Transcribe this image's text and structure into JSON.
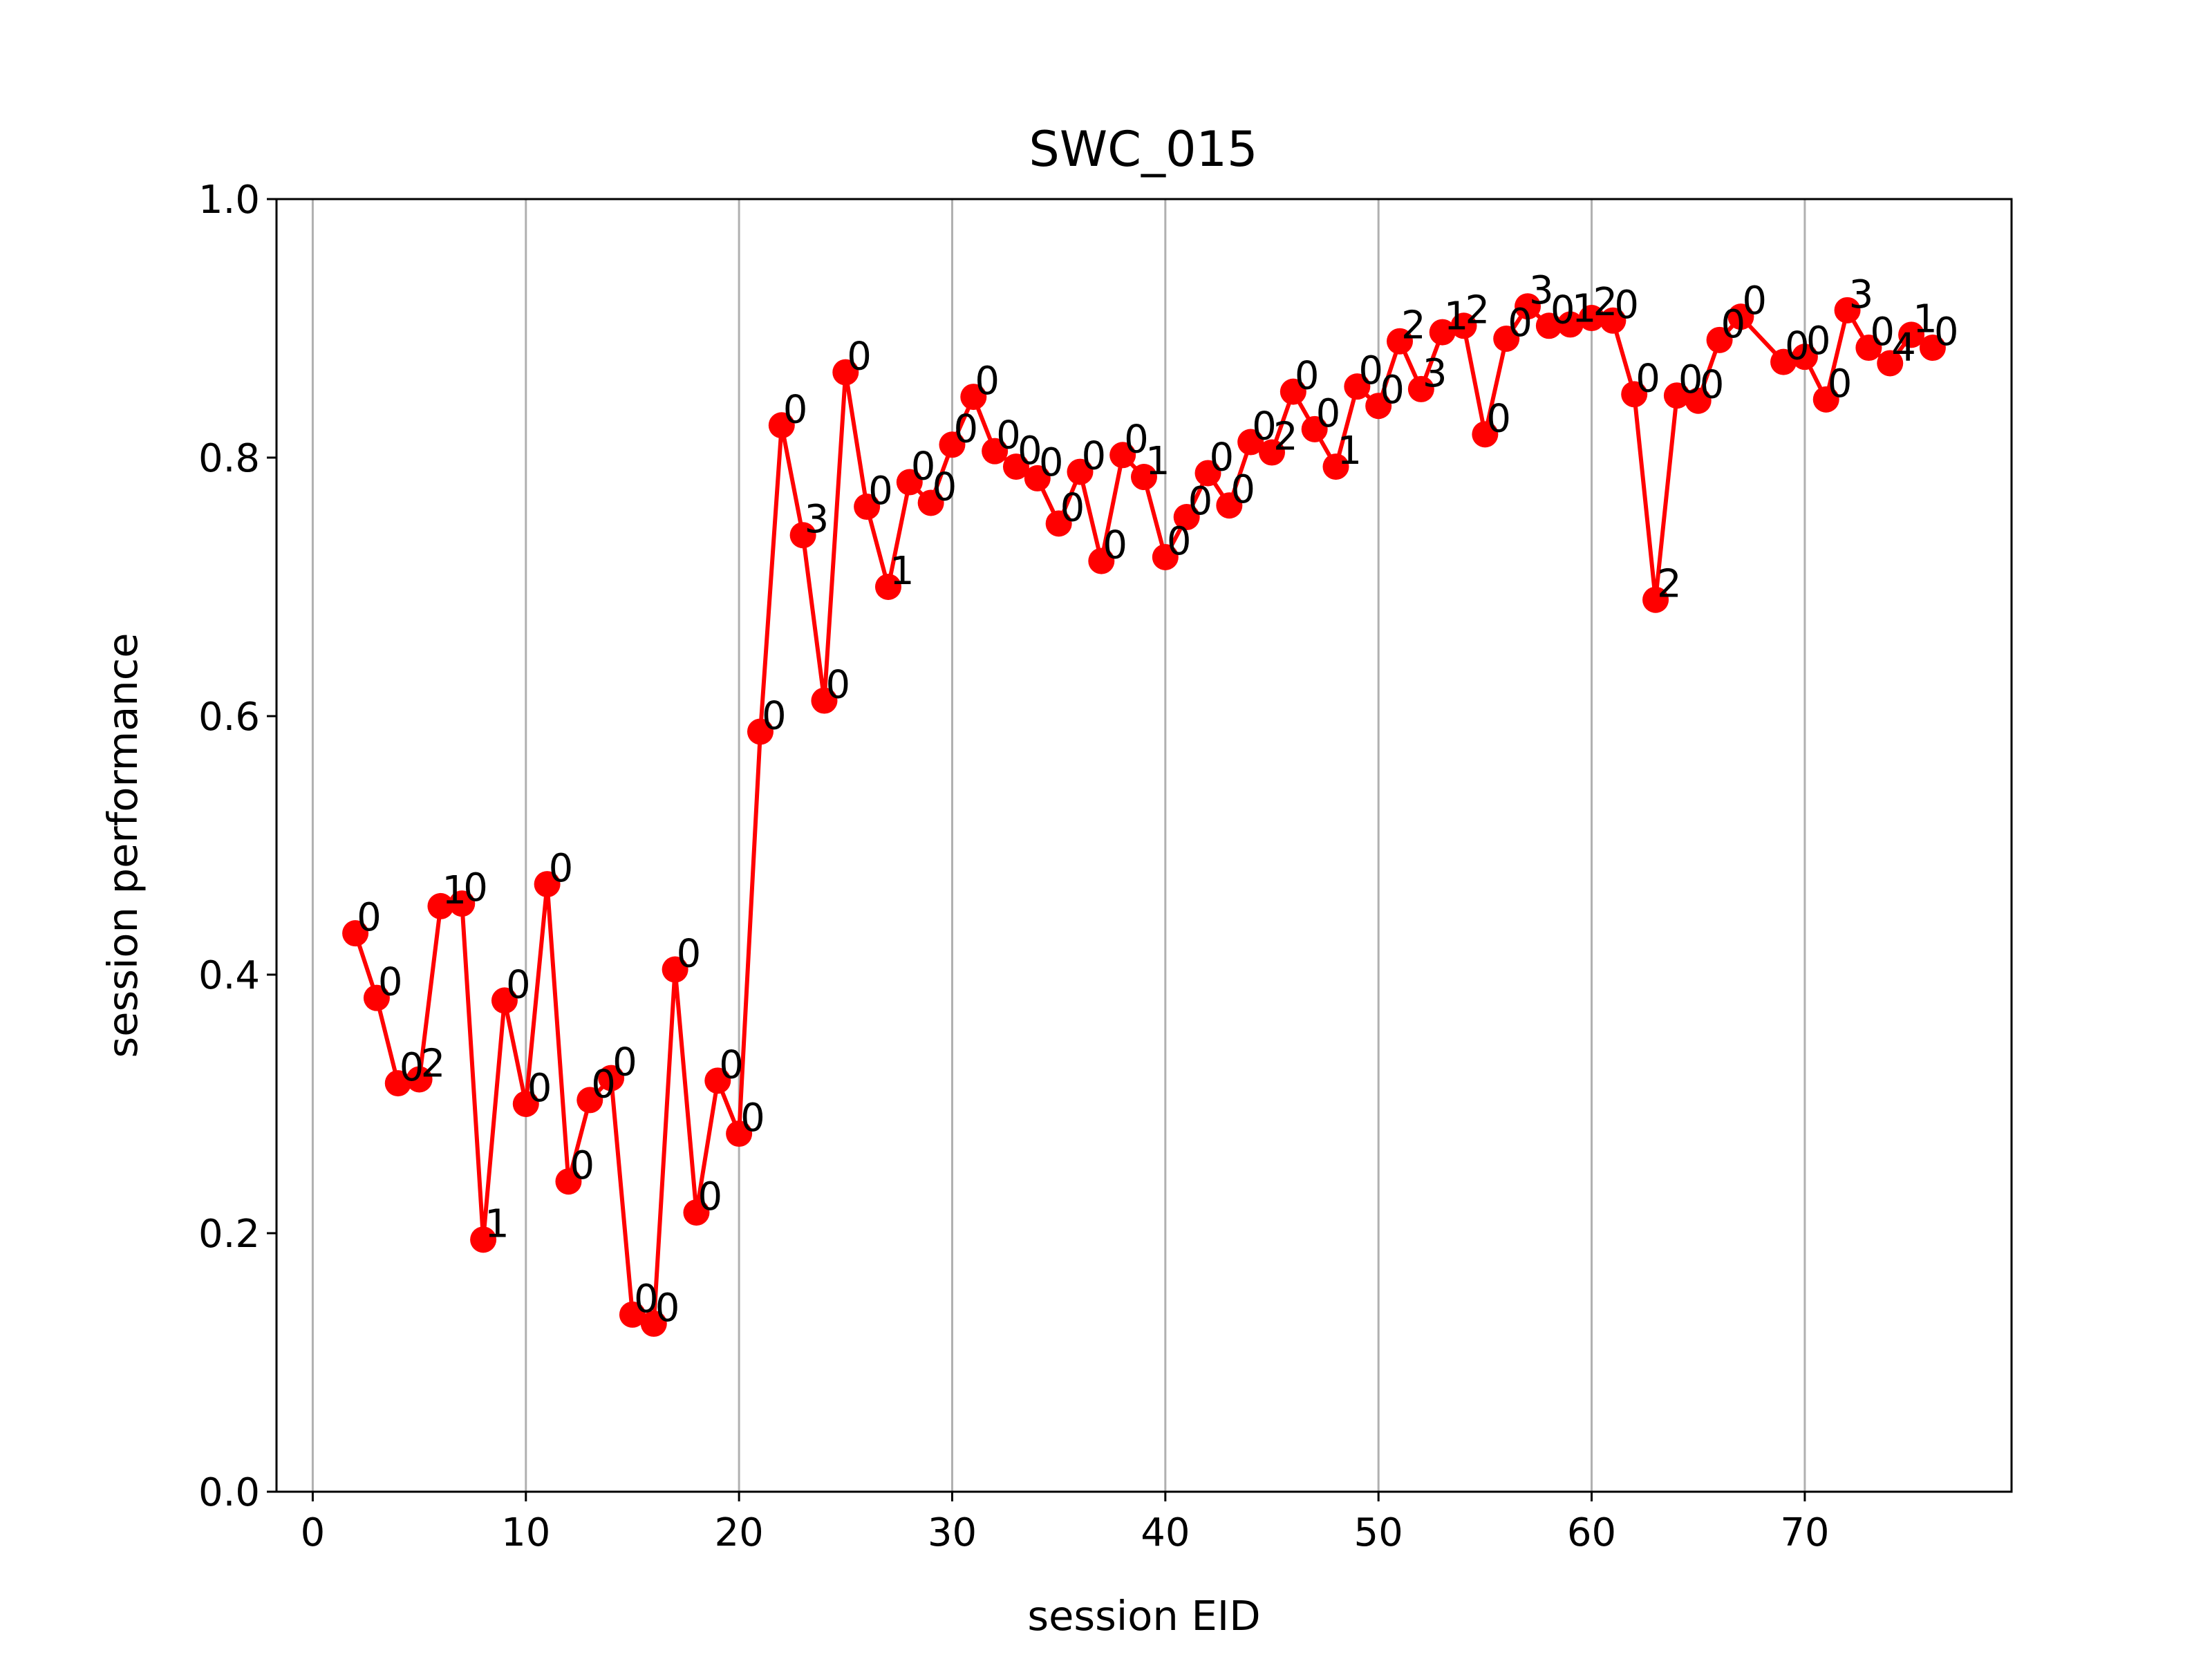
{
  "chart_data": {
    "type": "line",
    "title": "SWC_015",
    "xlabel": "session EID",
    "ylabel": "session performance",
    "xlim": [
      -1.7,
      79.7
    ],
    "ylim": [
      0.0,
      1.0
    ],
    "xticks": [
      0,
      10,
      20,
      30,
      40,
      50,
      60,
      70
    ],
    "xtick_labels": [
      "0",
      "10",
      "20",
      "30",
      "40",
      "50",
      "60",
      "70"
    ],
    "yticks": [
      0.0,
      0.2,
      0.4,
      0.6,
      0.8,
      1.0
    ],
    "ytick_labels": [
      "0.0",
      "0.2",
      "0.4",
      "0.6",
      "0.8",
      "1.0"
    ],
    "grid": "vertical",
    "line_color": "#ff0000",
    "marker_color": "#ff0000",
    "grid_color": "#b0b0b0",
    "series": [
      {
        "marker": "circle",
        "x": [
          2,
          3,
          4,
          5,
          6,
          7,
          8,
          9,
          10,
          11,
          12,
          13,
          14,
          15,
          16,
          17,
          18,
          19,
          20,
          21,
          22,
          23,
          24,
          25,
          26,
          27,
          28,
          29,
          30,
          31,
          32,
          33,
          34,
          35,
          36,
          37,
          38,
          39,
          40,
          41,
          42,
          43,
          44,
          45,
          46,
          47,
          48,
          49,
          50,
          51,
          52,
          53,
          54,
          55,
          56,
          57,
          58,
          59,
          60,
          61,
          62,
          63,
          64,
          65,
          66,
          67,
          69,
          70,
          71,
          72,
          73,
          74,
          75,
          76
        ],
        "y": [
          0.432,
          0.382,
          0.316,
          0.319,
          0.453,
          0.455,
          0.195,
          0.38,
          0.3,
          0.47,
          0.24,
          0.303,
          0.32,
          0.137,
          0.13,
          0.404,
          0.216,
          0.318,
          0.277,
          0.588,
          0.825,
          0.74,
          0.612,
          0.866,
          0.762,
          0.7,
          0.781,
          0.765,
          0.81,
          0.847,
          0.805,
          0.793,
          0.784,
          0.749,
          0.789,
          0.72,
          0.802,
          0.785,
          0.723,
          0.754,
          0.788,
          0.763,
          0.812,
          0.804,
          0.851,
          0.822,
          0.793,
          0.855,
          0.84,
          0.89,
          0.853,
          0.897,
          0.902,
          0.818,
          0.892,
          0.917,
          0.902,
          0.903,
          0.908,
          0.906,
          0.849,
          0.69,
          0.848,
          0.844,
          0.891,
          0.909,
          0.874,
          0.878,
          0.845,
          0.914,
          0.885,
          0.873,
          0.895,
          0.885
        ],
        "labels": [
          "0",
          "0",
          "0",
          "2",
          "1",
          "0",
          "1",
          "0",
          "0",
          "0",
          "0",
          "0",
          "0",
          "0",
          "0",
          "0",
          "0",
          "0",
          "0",
          "0",
          "0",
          "3",
          "0",
          "0",
          "0",
          "1",
          "0",
          "0",
          "0",
          "0",
          "0",
          "0",
          "0",
          "0",
          "0",
          "0",
          "0",
          "1",
          "0",
          "0",
          "0",
          "0",
          "0",
          "2",
          "0",
          "0",
          "1",
          "0",
          "0",
          "2",
          "3",
          "1",
          "2",
          "0",
          "0",
          "3",
          "0",
          "1",
          "2",
          "0",
          "0",
          "2",
          "0",
          "0",
          "0",
          "0",
          "0",
          "0",
          "0",
          "3",
          "0",
          "4",
          "1",
          "0"
        ],
        "label_offsets": [
          [
            0,
            0
          ],
          [
            0,
            0
          ],
          [
            0,
            0
          ],
          [
            0,
            0
          ],
          [
            0,
            0
          ],
          [
            0,
            0
          ],
          [
            0,
            0
          ],
          [
            0,
            0
          ],
          [
            0,
            0
          ],
          [
            0,
            0
          ],
          [
            0,
            0
          ],
          [
            0,
            0
          ],
          [
            0,
            0
          ],
          [
            0,
            0
          ],
          [
            0,
            0
          ],
          [
            0,
            0
          ],
          [
            0,
            0
          ],
          [
            0,
            0
          ],
          [
            0,
            0
          ],
          [
            0,
            0
          ],
          [
            0,
            0
          ],
          [
            0,
            0
          ],
          [
            0,
            0
          ],
          [
            0,
            0
          ],
          [
            0,
            0
          ],
          [
            0,
            0
          ],
          [
            0,
            0
          ],
          [
            0,
            0
          ],
          [
            0,
            0
          ],
          [
            0,
            0
          ],
          [
            0,
            0
          ],
          [
            0,
            0
          ],
          [
            0,
            0
          ],
          [
            0,
            0
          ],
          [
            0,
            0
          ],
          [
            0,
            0
          ],
          [
            0,
            0
          ],
          [
            0,
            0
          ],
          [
            0,
            0
          ],
          [
            0,
            0
          ],
          [
            0,
            0
          ],
          [
            0,
            0
          ],
          [
            0,
            0
          ],
          [
            0,
            0
          ],
          [
            0,
            0
          ],
          [
            0,
            0
          ],
          [
            0,
            0
          ],
          [
            0,
            0
          ],
          [
            0,
            0
          ],
          [
            0,
            0
          ],
          [
            0,
            0
          ],
          [
            0,
            0
          ],
          [
            0,
            0
          ],
          [
            0,
            0
          ],
          [
            0,
            0
          ],
          [
            0,
            0
          ],
          [
            0,
            0
          ],
          [
            0,
            0
          ],
          [
            0,
            0
          ],
          [
            0,
            0
          ],
          [
            0,
            0
          ],
          [
            0,
            0
          ],
          [
            0,
            0
          ],
          [
            0,
            0
          ],
          [
            0,
            0
          ],
          [
            0,
            0
          ],
          [
            0,
            0
          ],
          [
            0,
            0
          ],
          [
            0,
            0
          ],
          [
            0,
            0
          ],
          [
            0,
            0
          ],
          [
            0,
            0
          ],
          [
            0,
            0
          ],
          [
            0,
            0
          ]
        ]
      }
    ]
  }
}
